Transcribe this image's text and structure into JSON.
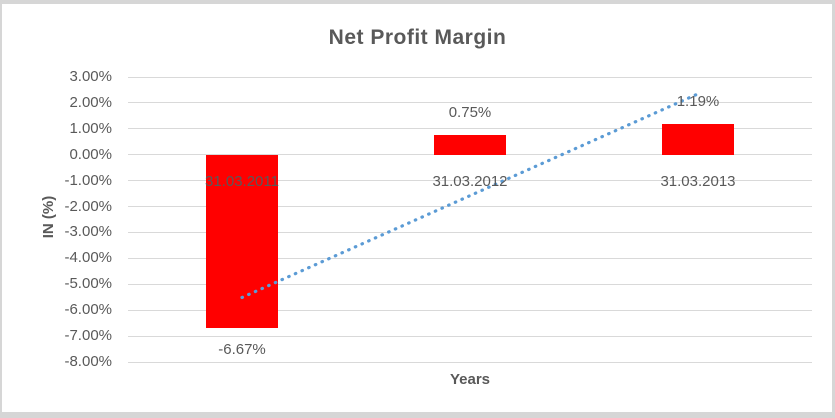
{
  "chart_data": {
    "type": "bar",
    "title": "Net Profit Margin",
    "xlabel": "Years",
    "ylabel": "IN (%)",
    "categories": [
      "31.03.2011",
      "31.03.2012",
      "31.03.2013"
    ],
    "values": [
      -6.67,
      0.75,
      1.19
    ],
    "data_labels": [
      "-6.67%",
      "0.75%",
      "1.19%"
    ],
    "value_unit": "%",
    "ylim": [
      -8,
      3
    ],
    "ytick_step": 1,
    "ytick_labels": [
      "3.00%",
      "2.00%",
      "1.00%",
      "0.00%",
      "-1.00%",
      "-2.00%",
      "-3.00%",
      "-4.00%",
      "-5.00%",
      "-6.00%",
      "-7.00%",
      "-8.00%"
    ],
    "grid": true,
    "legend": "none",
    "trendline": {
      "type": "linear",
      "style": "dotted",
      "start_value": -5.51,
      "end_value": 2.35
    },
    "colors": {
      "bar": "#FF0000",
      "trendline": "#5B9BD5",
      "text": "#595959",
      "gridline": "#D9D9D9",
      "background": "#FFFFFF",
      "frame": "#D6D6D6"
    }
  }
}
